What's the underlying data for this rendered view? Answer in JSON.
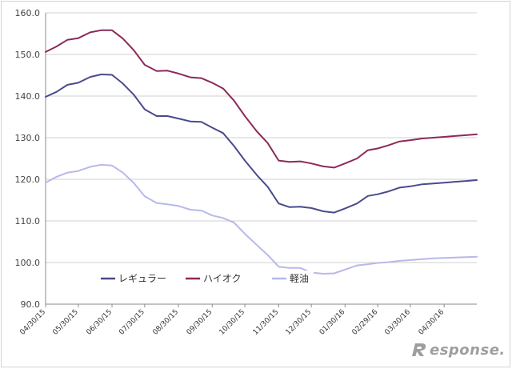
{
  "chart_data": {
    "type": "line",
    "title": "",
    "xlabel": "",
    "ylabel": "",
    "ylim": [
      90,
      160
    ],
    "yticks": [
      "90.0",
      "100.0",
      "110.0",
      "120.0",
      "130.0",
      "140.0",
      "150.0",
      "160.0"
    ],
    "xtick_labels": [
      "04/30/15",
      "05/30/15",
      "06/30/15",
      "07/30/15",
      "08/30/15",
      "09/30/15",
      "10/30/15",
      "11/30/15",
      "12/30/15",
      "01/30/16",
      "02/29/16",
      "03/30/16",
      "04/30/16"
    ],
    "grid": "horizontal",
    "legend_position": "bottom-left",
    "x": [
      "04/30/15",
      "05/10/15",
      "05/20/15",
      "05/30/15",
      "06/10/15",
      "06/20/15",
      "06/30/15",
      "07/10/15",
      "07/20/15",
      "07/30/15",
      "08/10/15",
      "08/20/15",
      "08/30/15",
      "09/10/15",
      "09/20/15",
      "09/30/15",
      "10/10/15",
      "10/20/15",
      "10/30/15",
      "11/10/15",
      "11/20/15",
      "11/30/15",
      "12/10/15",
      "12/20/15",
      "12/30/15",
      "01/10/16",
      "01/20/16",
      "01/30/16",
      "02/10/16",
      "02/20/16",
      "02/29/16",
      "03/10/16",
      "03/20/16",
      "03/30/16",
      "04/10/16",
      "04/20/16",
      "04/30/16",
      "05/10/16",
      "05/20/16",
      "05/30/16"
    ],
    "series": [
      {
        "name": "レギュラー",
        "color": "#4a4a8c",
        "values": [
          139.8,
          141.0,
          142.7,
          143.2,
          144.6,
          145.2,
          145.1,
          143.0,
          140.3,
          136.8,
          135.2,
          135.2,
          134.6,
          133.9,
          133.8,
          132.4,
          131.1,
          128.0,
          124.5,
          121.0,
          118.2,
          114.2,
          113.3,
          113.4,
          113.1,
          112.3,
          112.0,
          113.0,
          114.2,
          116.0,
          116.4,
          117.1,
          118.0,
          118.3,
          118.8,
          119.0,
          119.2,
          119.4,
          119.6,
          119.8
        ]
      },
      {
        "name": "ハイオク",
        "color": "#8c2a5a",
        "values": [
          150.6,
          151.9,
          153.5,
          153.9,
          155.3,
          155.8,
          155.8,
          153.8,
          151.0,
          147.5,
          146.0,
          146.1,
          145.4,
          144.5,
          144.3,
          143.2,
          141.8,
          138.9,
          135.2,
          131.5,
          128.7,
          124.5,
          124.2,
          124.3,
          123.8,
          123.1,
          122.8,
          123.8,
          125.0,
          127.0,
          127.4,
          128.2,
          129.1,
          129.4,
          129.8,
          130.0,
          130.2,
          130.4,
          130.6,
          130.8
        ]
      },
      {
        "name": "軽油",
        "color": "#b8b8ec",
        "values": [
          119.2,
          120.6,
          121.6,
          122.0,
          123.0,
          123.5,
          123.3,
          121.6,
          119.1,
          115.9,
          114.3,
          114.0,
          113.6,
          112.7,
          112.5,
          111.3,
          110.7,
          109.6,
          106.9,
          104.2,
          101.8,
          99.0,
          98.7,
          98.7,
          97.6,
          97.3,
          97.4,
          98.3,
          99.3,
          99.6,
          99.9,
          100.1,
          100.4,
          100.6,
          100.8,
          101.0,
          101.1,
          101.2,
          101.3,
          101.4
        ]
      }
    ]
  },
  "watermark": {
    "text": "esponse."
  }
}
